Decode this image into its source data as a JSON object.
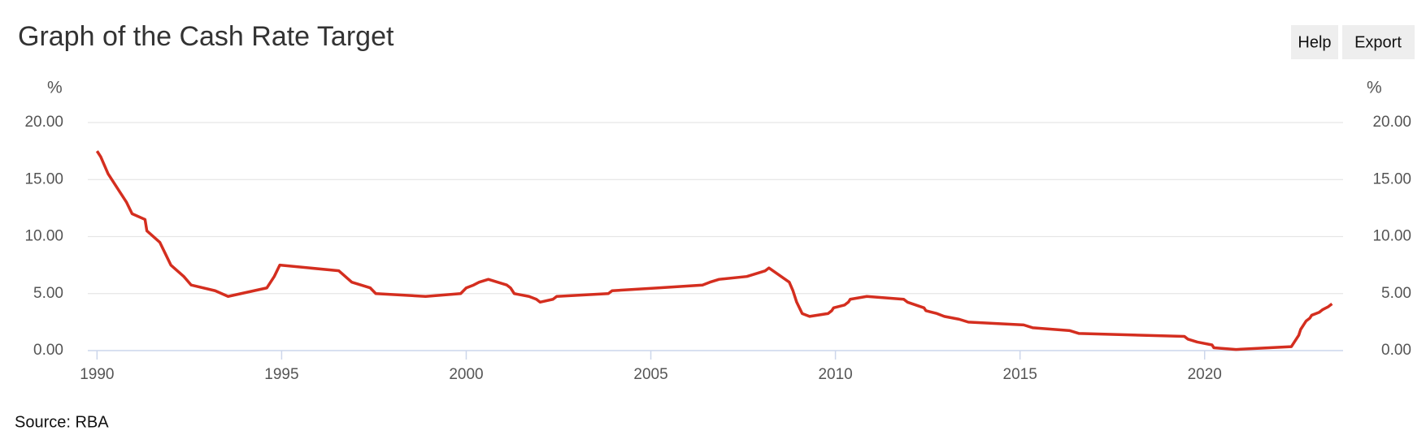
{
  "chart_data": {
    "type": "line",
    "title": "Graph of the Cash Rate Target",
    "buttons": [
      "Help",
      "Export"
    ],
    "y_label": "%",
    "y2_label": "%",
    "source": "Source: RBA",
    "xlim": [
      1989.75,
      2023.75
    ],
    "xticks": [
      1990,
      1995,
      2000,
      2005,
      2010,
      2015,
      2020
    ],
    "ylim": [
      0,
      20
    ],
    "yticks": [
      {
        "value": 0,
        "label": "0.00"
      },
      {
        "value": 5,
        "label": "5.00"
      },
      {
        "value": 10,
        "label": "10.00"
      },
      {
        "value": 15,
        "label": "15.00"
      },
      {
        "value": 20,
        "label": "20.00"
      }
    ],
    "y2lim": [
      0,
      20
    ],
    "y2ticks": [
      {
        "value": 0,
        "label": "0.00"
      },
      {
        "value": 5,
        "label": "5.00"
      },
      {
        "value": 10,
        "label": "10.00"
      },
      {
        "value": 15,
        "label": "15.00"
      },
      {
        "value": 20,
        "label": "20.00"
      }
    ],
    "grid": true,
    "x": [
      1990.0,
      1990.1,
      1990.3,
      1990.6,
      1990.8,
      1990.95,
      1991.3,
      1991.35,
      1991.7,
      1991.85,
      1992.0,
      1992.35,
      1992.55,
      1993.2,
      1993.55,
      1994.6,
      1994.8,
      1994.95,
      1996.55,
      1996.9,
      1997.4,
      1997.55,
      1998.9,
      1999.85,
      2000.0,
      2000.2,
      2000.35,
      2000.6,
      2001.1,
      2001.2,
      2001.3,
      2001.7,
      2001.9,
      2002.0,
      2002.35,
      2002.45,
      2003.85,
      2003.95,
      2005.2,
      2006.4,
      2006.6,
      2006.85,
      2007.6,
      2007.85,
      2008.1,
      2008.2,
      2008.75,
      2008.85,
      2008.95,
      2009.1,
      2009.3,
      2009.8,
      2009.9,
      2009.95,
      2010.25,
      2010.35,
      2010.4,
      2010.85,
      2011.85,
      2011.95,
      2012.4,
      2012.45,
      2012.75,
      2012.95,
      2013.35,
      2013.6,
      2015.1,
      2015.35,
      2016.35,
      2016.6,
      2019.45,
      2019.55,
      2019.8,
      2020.2,
      2020.25,
      2020.85,
      2022.35,
      2022.45,
      2022.55,
      2022.6,
      2022.7,
      2022.75,
      2022.85,
      2022.9,
      2023.1,
      2023.2,
      2023.35,
      2023.45
    ],
    "series": [
      {
        "name": "Cash Rate Target",
        "color": "#d42e1f",
        "values": [
          17.5,
          17.0,
          15.5,
          14.0,
          13.0,
          12.0,
          11.5,
          10.5,
          9.5,
          8.5,
          7.5,
          6.5,
          5.75,
          5.25,
          4.75,
          5.5,
          6.5,
          7.5,
          7.0,
          6.0,
          5.5,
          5.0,
          4.75,
          5.0,
          5.5,
          5.75,
          6.0,
          6.25,
          5.75,
          5.5,
          5.0,
          4.75,
          4.5,
          4.25,
          4.5,
          4.75,
          5.0,
          5.25,
          5.5,
          5.75,
          6.0,
          6.25,
          6.5,
          6.75,
          7.0,
          7.25,
          6.0,
          5.25,
          4.25,
          3.25,
          3.0,
          3.25,
          3.5,
          3.75,
          4.0,
          4.25,
          4.5,
          4.75,
          4.5,
          4.25,
          3.75,
          3.5,
          3.25,
          3.0,
          2.75,
          2.5,
          2.25,
          2.0,
          1.75,
          1.5,
          1.25,
          1.0,
          0.75,
          0.5,
          0.25,
          0.1,
          0.35,
          0.85,
          1.35,
          1.85,
          2.35,
          2.6,
          2.85,
          3.1,
          3.35,
          3.6,
          3.85,
          4.1
        ]
      }
    ]
  }
}
